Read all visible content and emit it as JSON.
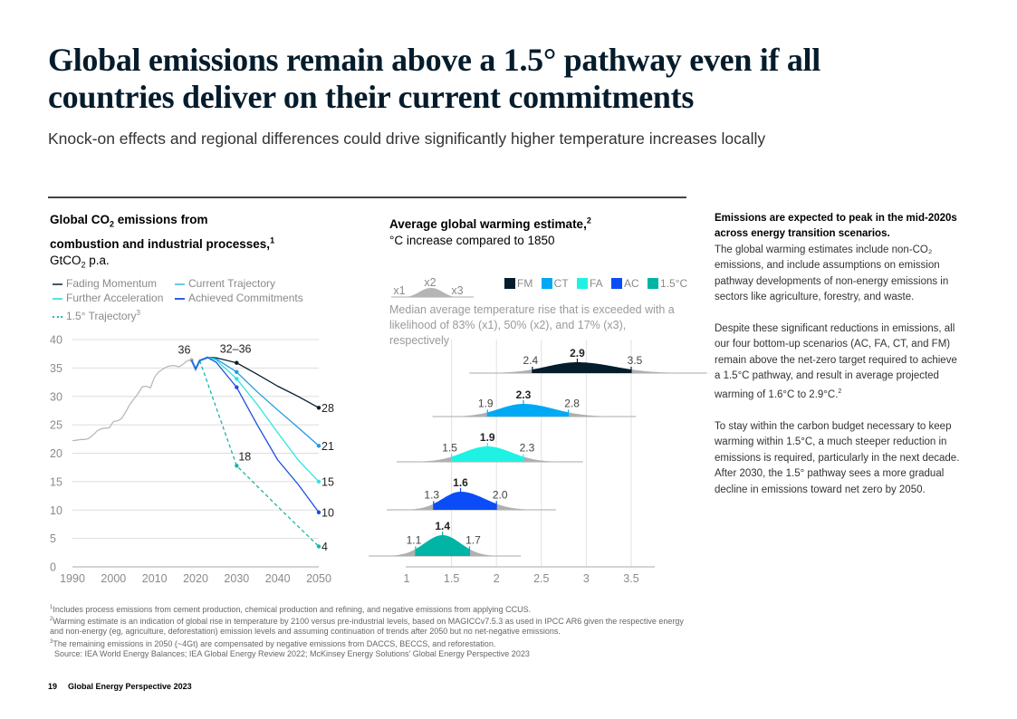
{
  "page": {
    "title": "Global emissions remain above a 1.5° pathway even if all countries deliver on their current commitments",
    "subtitle": "Knock-on effects and regional differences could drive significantly higher temperature increases locally",
    "page_number": "19",
    "publication": "Global Energy Perspective 2023"
  },
  "side_text": {
    "lead_bold": "Emissions are expected to peak in the mid-2020s across energy transition scenarios.",
    "lead_rest": "The global warming estimates include non-CO₂ emissions, and include assumptions on emission pathway developments of non-energy emissions in sectors like agriculture, forestry, and waste.",
    "para2": "Despite these significant reductions in emissions, all our four bottom-up scenarios (AC, FA, CT, and FM) remain above the net-zero target required to achieve a 1.5°C pathway, and result in average projected warming of 1.6°C to 2.9°C.",
    "para2_sup": "2",
    "para3": "To stay within the carbon budget necessary to keep warming within 1.5°C, a much steeper reduction in emissions is required, particularly in the next decade. After 2030, the 1.5° pathway sees a more gradual decline in emissions toward net zero by 2050."
  },
  "footnotes": [
    {
      "sup": "1",
      "text": "Includes process emissions from cement production, chemical production and refining, and negative emissions from applying CCUS."
    },
    {
      "sup": "2",
      "text": "Warming estimate is an indication of global rise in temperature by 2100 versus pre-industrial levels, based on MAGICCv7.5.3 as used in IPCC AR6 given the respective energy and non-energy (eg, agriculture, deforestation) emission levels and assuming continuation of trends after 2050 but no net-negative emissions."
    },
    {
      "sup": "3",
      "text": "The remaining emissions in 2050 (~4Gt) are compensated by negative emissions from DACCS, BECCS, and reforestation."
    },
    {
      "sup": "",
      "text": "Source: IEA World Energy Balances; IEA Global Energy Review 2022; McKinsey Energy Solutions' Global Energy Perspective 2023"
    }
  ],
  "chart_data": [
    {
      "type": "line",
      "title_line1": "Global CO",
      "title_sub": "2",
      "title_line1_rest": " emissions from",
      "title_line2": "combustion and industrial processes,",
      "title_sup": "1",
      "unit_pre": "GtCO",
      "unit_sub": "2",
      "unit_post": " p.a.",
      "xlabel": "",
      "ylabel": "GtCO2 p.a.",
      "xlim": [
        1990,
        2050
      ],
      "ylim": [
        0,
        40
      ],
      "x_ticks": [
        "1990",
        "2000",
        "2010",
        "2020",
        "2030",
        "2040",
        "2050"
      ],
      "y_ticks": [
        "0",
        "5",
        "10",
        "15",
        "20",
        "25",
        "30",
        "35",
        "40"
      ],
      "grid": true,
      "legend": [
        {
          "name": "Fading Momentum",
          "color": "#051c2c",
          "style": "solid"
        },
        {
          "name": "Current Trajectory",
          "color": "#1f9be3",
          "style": "solid"
        },
        {
          "name": "Further Acceleration",
          "color": "#2ee6e0",
          "style": "solid"
        },
        {
          "name": "Achieved Commitments",
          "color": "#1f4fe0",
          "style": "solid"
        },
        {
          "name": "1.5° Trajectory",
          "sup": "3",
          "color": "#16b8a8",
          "style": "dashed"
        }
      ],
      "historical": {
        "name": "Historical",
        "color": "#b5b5b5",
        "x": [
          1990,
          1991,
          1992,
          1993,
          1994,
          1995,
          1996,
          1997,
          1998,
          1999,
          2000,
          2001,
          2002,
          2003,
          2004,
          2005,
          2006,
          2007,
          2008,
          2009,
          2010,
          2011,
          2012,
          2013,
          2014,
          2015,
          2016,
          2017,
          2018,
          2019
        ],
        "y": [
          22.2,
          22.3,
          22.4,
          22.4,
          22.6,
          23.2,
          23.9,
          24.3,
          24.4,
          24.5,
          25.6,
          25.7,
          26.1,
          27.3,
          28.6,
          29.6,
          30.5,
          31.7,
          31.8,
          31.5,
          33.4,
          34.3,
          34.8,
          35.2,
          35.4,
          35.4,
          35.2,
          35.7,
          36.3,
          36.4
        ]
      },
      "series": [
        {
          "name": "Fading Momentum",
          "color": "#051c2c",
          "dashed": false,
          "x": [
            2019,
            2020,
            2021,
            2023,
            2025,
            2030,
            2035,
            2040,
            2045,
            2050
          ],
          "y": [
            36.4,
            34.8,
            36.3,
            36.9,
            36.8,
            35.9,
            33.9,
            31.8,
            30.0,
            28.0
          ]
        },
        {
          "name": "Current Trajectory",
          "color": "#1f9be3",
          "dashed": false,
          "x": [
            2019,
            2020,
            2021,
            2023,
            2025,
            2030,
            2035,
            2040,
            2045,
            2050
          ],
          "y": [
            36.4,
            34.8,
            36.3,
            36.9,
            36.6,
            34.3,
            30.8,
            27.6,
            24.5,
            21.3
          ]
        },
        {
          "name": "Further Acceleration",
          "color": "#2ee6e0",
          "dashed": false,
          "x": [
            2019,
            2020,
            2021,
            2023,
            2025,
            2030,
            2035,
            2040,
            2045,
            2050
          ],
          "y": [
            36.4,
            34.8,
            36.3,
            36.9,
            36.4,
            33.1,
            28.6,
            23.6,
            18.8,
            15.0
          ]
        },
        {
          "name": "Achieved Commitments",
          "color": "#1f4fe0",
          "dashed": false,
          "x": [
            2019,
            2020,
            2021,
            2023,
            2025,
            2030,
            2035,
            2040,
            2045,
            2050
          ],
          "y": [
            36.4,
            34.8,
            36.3,
            36.8,
            36.0,
            31.6,
            25.0,
            18.8,
            14.5,
            9.6
          ]
        },
        {
          "name": "1.5° Trajectory",
          "color": "#16b8a8",
          "dashed": true,
          "x": [
            2021,
            2030,
            2040,
            2050
          ],
          "y": [
            36.3,
            17.8,
            10.6,
            3.6
          ]
        }
      ],
      "annotations": [
        {
          "text": "36",
          "x": 2019,
          "y": 36.4
        },
        {
          "text": "32–36",
          "x": 2027,
          "y": 36.9
        },
        {
          "text": "18",
          "x": 2030,
          "y": 17.8
        },
        {
          "text": "28",
          "x": 2050,
          "y": 28.0
        },
        {
          "text": "21",
          "x": 2050,
          "y": 21.3
        },
        {
          "text": "15",
          "x": 2050,
          "y": 15.0
        },
        {
          "text": "10",
          "x": 2050,
          "y": 9.6
        },
        {
          "text": "4",
          "x": 2050,
          "y": 3.6
        }
      ]
    },
    {
      "type": "area",
      "subtype": "distribution",
      "title": "Average global warming estimate,",
      "title_sup": "2",
      "subtitle": "°C increase compared to 1850",
      "xlabel": "",
      "ylabel": "",
      "xlim": [
        1,
        3.5
      ],
      "x_ticks": [
        "1",
        "1.5",
        "2",
        "2.5",
        "3",
        "3.5"
      ],
      "grid": true,
      "legend_note": "Median average temperature rise that is exceeded with a likelihood of 83% (x1), 50% (x2), and 17% (x3), respectively",
      "legend_example": {
        "x1": "x1",
        "x2": "x2",
        "x3": "x3",
        "color": "#b5b5b5"
      },
      "legend": [
        {
          "name": "FM",
          "color": "#051c2c"
        },
        {
          "name": "CT",
          "color": "#00a9f4"
        },
        {
          "name": "FA",
          "color": "#1ff2e4"
        },
        {
          "name": "AC",
          "color": "#0a4cf7"
        },
        {
          "name": "1.5°C",
          "color": "#00b5a6"
        }
      ],
      "series": [
        {
          "name": "FM",
          "color": "#051c2c",
          "x1": 2.4,
          "x2": 2.9,
          "x3": 3.5,
          "x1_label": "2.4",
          "x2_label": "2.9",
          "x3_label": "3.5"
        },
        {
          "name": "CT",
          "color": "#00a9f4",
          "x1": 1.9,
          "x2": 2.3,
          "x3": 2.8,
          "x1_label": "1.9",
          "x2_label": "2.3",
          "x3_label": "2.8"
        },
        {
          "name": "FA",
          "color": "#1ff2e4",
          "x1": 1.5,
          "x2": 1.9,
          "x3": 2.3,
          "x1_label": "1.5",
          "x2_label": "1.9",
          "x3_label": "2.3"
        },
        {
          "name": "AC",
          "color": "#0a4cf7",
          "x1": 1.3,
          "x2": 1.6,
          "x3": 2.0,
          "x1_label": "1.3",
          "x2_label": "1.6",
          "x3_label": "2.0"
        },
        {
          "name": "1.5°C",
          "color": "#00b5a6",
          "x1": 1.1,
          "x2": 1.4,
          "x3": 1.7,
          "x1_label": "1.1",
          "x2_label": "1.4",
          "x3_label": "1.7"
        }
      ]
    }
  ]
}
